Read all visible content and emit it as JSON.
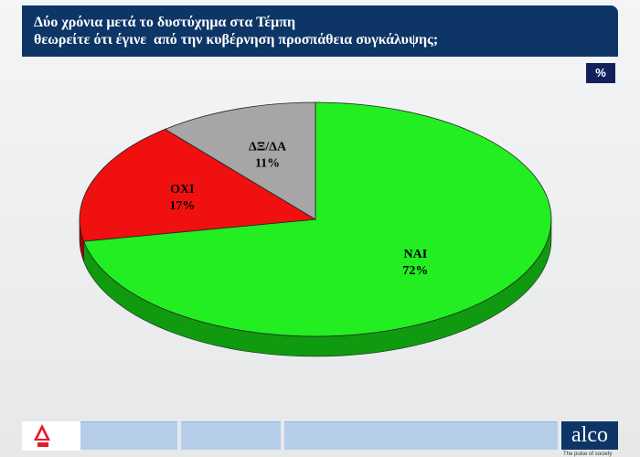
{
  "header": {
    "title_line1": "Δύο χρόνια μετά το δυστύχημα στα Τέμπη",
    "title_line2": "θεωρείτε ότι έγινε  από την κυβέρνηση προσπάθεια συγκάλυψης;"
  },
  "unit_badge": "%",
  "chart_data": {
    "type": "pie",
    "title": "",
    "slices": [
      {
        "label": "ΝΑΙ",
        "value": 72,
        "value_label": "72%",
        "color": "#22ee22",
        "side_color": "#0f9a0f"
      },
      {
        "label": "ΟΧΙ",
        "value": 17,
        "value_label": "17%",
        "color": "#f01010",
        "side_color": "#a00000"
      },
      {
        "label": "ΔΞ/ΔΑ",
        "value": 11,
        "value_label": "11%",
        "color": "#a6a6a6",
        "side_color": "#6e6e6e"
      }
    ]
  },
  "footer": {
    "brand": "alco",
    "tagline": "The pulse of society"
  }
}
